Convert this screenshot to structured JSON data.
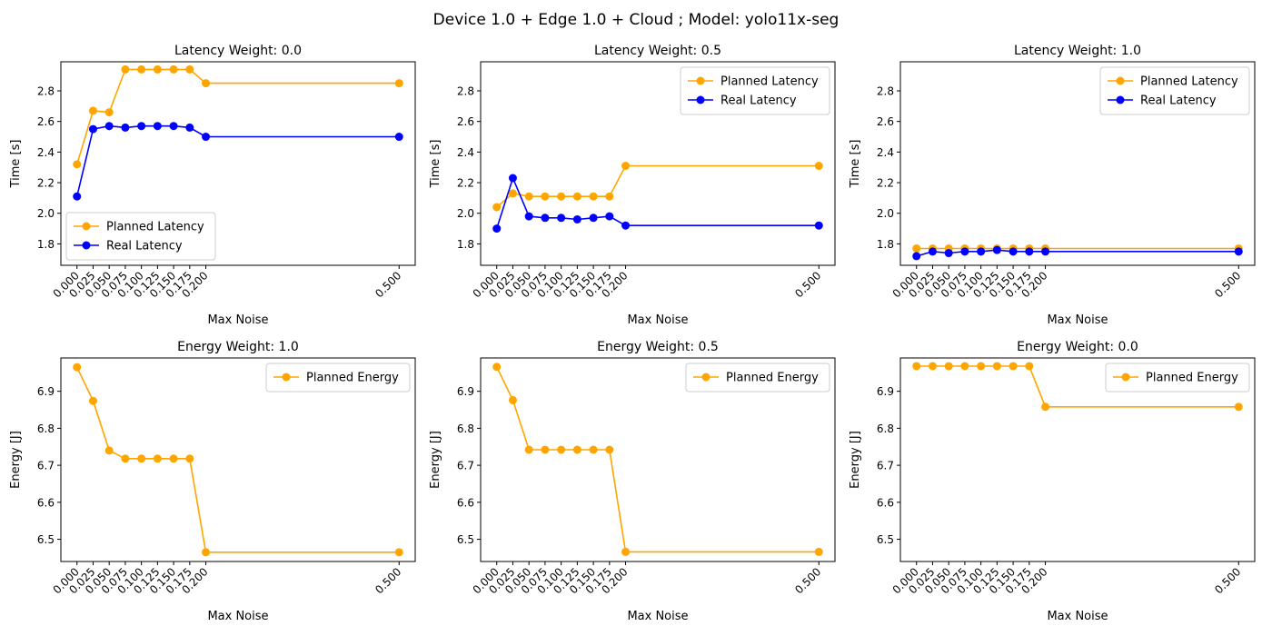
{
  "figure": {
    "suptitle": "Device 1.0 + Edge 1.0 + Cloud ; Model: yolo11x-seg"
  },
  "colors": {
    "planned": "#ffa500",
    "real": "#0000ff"
  },
  "chart_data": [
    {
      "type": "line",
      "title": "Latency Weight: 0.0",
      "xlabel": "Max Noise",
      "ylabel": "Time [s]",
      "x": [
        0.0,
        0.025,
        0.05,
        0.075,
        0.1,
        0.125,
        0.15,
        0.175,
        0.2,
        0.5
      ],
      "xticks": [
        "0.000",
        "0.025",
        "0.050",
        "0.075",
        "0.100",
        "0.125",
        "0.150",
        "0.175",
        "0.200",
        "0.500"
      ],
      "ylim": [
        1.66,
        2.99
      ],
      "yticks": [
        "1.8",
        "2.0",
        "2.2",
        "2.4",
        "2.6",
        "2.8"
      ],
      "legend": "lower-left",
      "series": [
        {
          "name": "Planned Latency",
          "color": "#ffa500",
          "values": [
            2.32,
            2.67,
            2.66,
            2.94,
            2.94,
            2.94,
            2.94,
            2.94,
            2.85,
            2.85
          ]
        },
        {
          "name": "Real Latency",
          "color": "#0000ff",
          "values": [
            2.11,
            2.55,
            2.57,
            2.56,
            2.57,
            2.57,
            2.57,
            2.56,
            2.5,
            2.5
          ]
        }
      ]
    },
    {
      "type": "line",
      "title": "Latency Weight: 0.5",
      "xlabel": "Max Noise",
      "ylabel": "Time [s]",
      "x": [
        0.0,
        0.025,
        0.05,
        0.075,
        0.1,
        0.125,
        0.15,
        0.175,
        0.2,
        0.5
      ],
      "xticks": [
        "0.000",
        "0.025",
        "0.050",
        "0.075",
        "0.100",
        "0.125",
        "0.150",
        "0.175",
        "0.200",
        "0.500"
      ],
      "ylim": [
        1.66,
        2.99
      ],
      "yticks": [
        "1.8",
        "2.0",
        "2.2",
        "2.4",
        "2.6",
        "2.8"
      ],
      "legend": "upper-right",
      "series": [
        {
          "name": "Planned Latency",
          "color": "#ffa500",
          "values": [
            2.04,
            2.13,
            2.11,
            2.11,
            2.11,
            2.11,
            2.11,
            2.11,
            2.31,
            2.31
          ]
        },
        {
          "name": "Real Latency",
          "color": "#0000ff",
          "values": [
            1.9,
            2.23,
            1.98,
            1.97,
            1.97,
            1.96,
            1.97,
            1.98,
            1.92,
            1.92
          ]
        }
      ]
    },
    {
      "type": "line",
      "title": "Latency Weight: 1.0",
      "xlabel": "Max Noise",
      "ylabel": "Time [s]",
      "x": [
        0.0,
        0.025,
        0.05,
        0.075,
        0.1,
        0.125,
        0.15,
        0.175,
        0.2,
        0.5
      ],
      "xticks": [
        "0.000",
        "0.025",
        "0.050",
        "0.075",
        "0.100",
        "0.125",
        "0.150",
        "0.175",
        "0.200",
        "0.500"
      ],
      "ylim": [
        1.66,
        2.99
      ],
      "yticks": [
        "1.8",
        "2.0",
        "2.2",
        "2.4",
        "2.6",
        "2.8"
      ],
      "legend": "upper-right",
      "series": [
        {
          "name": "Planned Latency",
          "color": "#ffa500",
          "values": [
            1.77,
            1.77,
            1.77,
            1.77,
            1.77,
            1.77,
            1.77,
            1.77,
            1.77,
            1.77
          ]
        },
        {
          "name": "Real Latency",
          "color": "#0000ff",
          "values": [
            1.72,
            1.75,
            1.74,
            1.75,
            1.75,
            1.76,
            1.75,
            1.75,
            1.75,
            1.75
          ]
        }
      ]
    },
    {
      "type": "line",
      "title": "Energy Weight: 1.0",
      "xlabel": "Max Noise",
      "ylabel": "Energy [J]",
      "x": [
        0.0,
        0.025,
        0.05,
        0.075,
        0.1,
        0.125,
        0.15,
        0.175,
        0.2,
        0.5
      ],
      "xticks": [
        "0.000",
        "0.025",
        "0.050",
        "0.075",
        "0.100",
        "0.125",
        "0.150",
        "0.175",
        "0.200",
        "0.500"
      ],
      "ylim": [
        6.44,
        6.99
      ],
      "yticks": [
        "6.5",
        "6.6",
        "6.7",
        "6.8",
        "6.9"
      ],
      "legend": "upper-right",
      "series": [
        {
          "name": "Planned Energy",
          "color": "#ffa500",
          "values": [
            6.965,
            6.874,
            6.74,
            6.718,
            6.718,
            6.718,
            6.718,
            6.718,
            6.465,
            6.465
          ]
        }
      ]
    },
    {
      "type": "line",
      "title": "Energy Weight: 0.5",
      "xlabel": "Max Noise",
      "ylabel": "Energy [J]",
      "x": [
        0.0,
        0.025,
        0.05,
        0.075,
        0.1,
        0.125,
        0.15,
        0.175,
        0.2,
        0.5
      ],
      "xticks": [
        "0.000",
        "0.025",
        "0.050",
        "0.075",
        "0.100",
        "0.125",
        "0.150",
        "0.175",
        "0.200",
        "0.500"
      ],
      "ylim": [
        6.44,
        6.99
      ],
      "yticks": [
        "6.5",
        "6.6",
        "6.7",
        "6.8",
        "6.9"
      ],
      "legend": "upper-right",
      "series": [
        {
          "name": "Planned Energy",
          "color": "#ffa500",
          "values": [
            6.966,
            6.876,
            6.742,
            6.742,
            6.742,
            6.742,
            6.742,
            6.742,
            6.466,
            6.466
          ]
        }
      ]
    },
    {
      "type": "line",
      "title": "Energy Weight: 0.0",
      "xlabel": "Max Noise",
      "ylabel": "Energy [J]",
      "x": [
        0.0,
        0.025,
        0.05,
        0.075,
        0.1,
        0.125,
        0.15,
        0.175,
        0.2,
        0.5
      ],
      "xticks": [
        "0.000",
        "0.025",
        "0.050",
        "0.075",
        "0.100",
        "0.125",
        "0.150",
        "0.175",
        "0.200",
        "0.500"
      ],
      "ylim": [
        6.44,
        6.99
      ],
      "yticks": [
        "6.5",
        "6.6",
        "6.7",
        "6.8",
        "6.9"
      ],
      "legend": "upper-right",
      "series": [
        {
          "name": "Planned Energy",
          "color": "#ffa500",
          "values": [
            6.968,
            6.968,
            6.968,
            6.968,
            6.968,
            6.968,
            6.968,
            6.968,
            6.858,
            6.858
          ]
        }
      ]
    }
  ]
}
